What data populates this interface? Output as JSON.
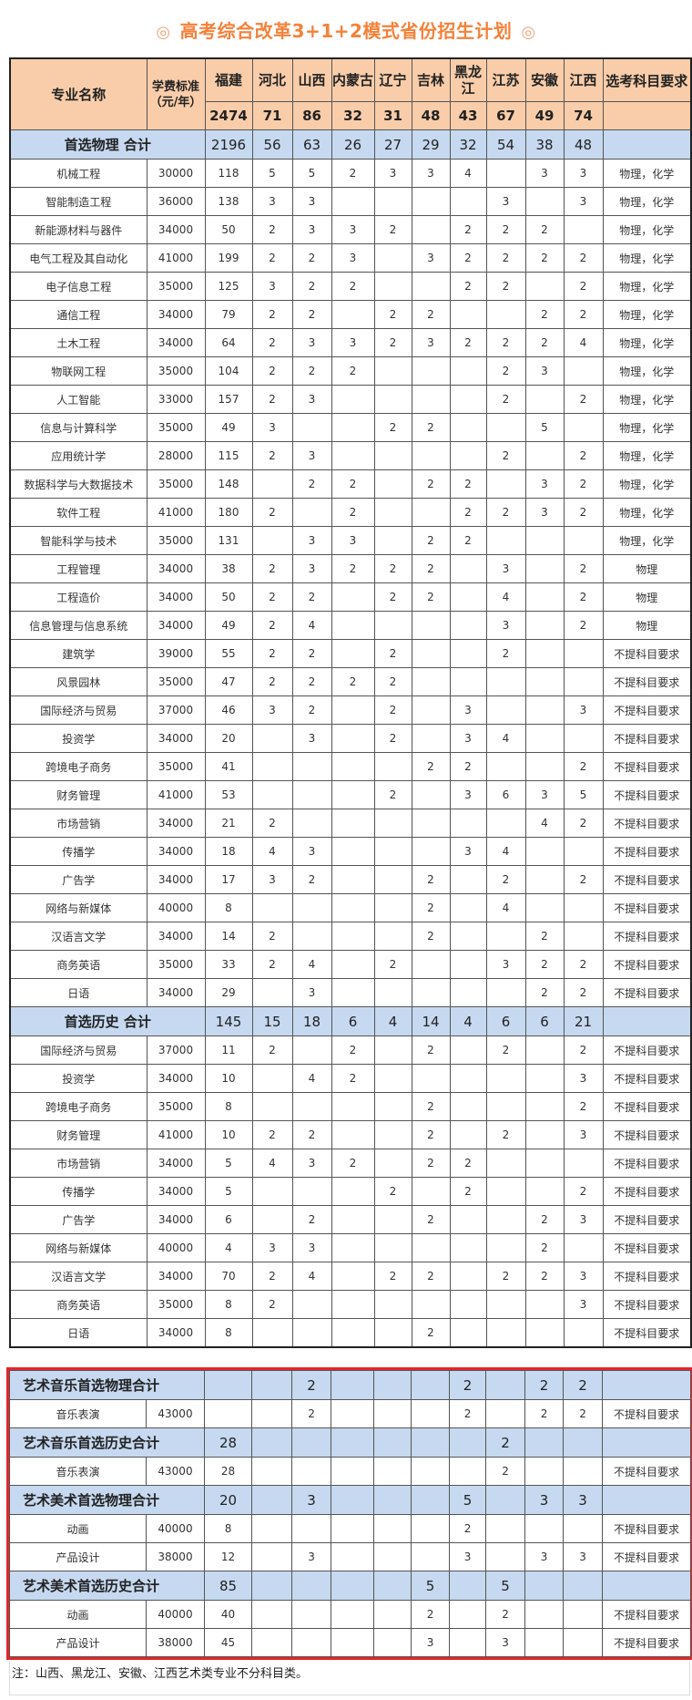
{
  "title": "高考综合改革3+1+2模式省份招生计划",
  "title_decoration_icon": "◎",
  "colors": {
    "title": "#f5813a",
    "header_bg": "#f9cda9",
    "total_bg": "#c6d9f0",
    "highlight_border": "#e3262a"
  },
  "header": {
    "major": "专业名称",
    "fee": "学费标准（元/年）",
    "requirement": "选考科目要求",
    "provinces": [
      "福建",
      "河北",
      "山西",
      "内蒙古",
      "辽宁",
      "吉林",
      "黑龙江",
      "江苏",
      "安徽",
      "江西"
    ],
    "totals": [
      "2474",
      "71",
      "86",
      "32",
      "31",
      "48",
      "43",
      "67",
      "49",
      "74"
    ]
  },
  "sections": [
    {
      "label": "首选物理  合计",
      "values": [
        "2196",
        "56",
        "63",
        "26",
        "27",
        "29",
        "32",
        "54",
        "38",
        "48"
      ],
      "rows": [
        {
          "name": "机械工程",
          "fee": "30000",
          "counts": [
            "118",
            "5",
            "5",
            "2",
            "3",
            "3",
            "4",
            "",
            "3",
            "3"
          ],
          "req": "物理，化学"
        },
        {
          "name": "智能制造工程",
          "fee": "36000",
          "counts": [
            "138",
            "3",
            "3",
            "",
            "",
            "",
            "",
            "3",
            "",
            "3"
          ],
          "req": "物理，化学"
        },
        {
          "name": "新能源材料与器件",
          "fee": "34000",
          "counts": [
            "50",
            "2",
            "3",
            "3",
            "2",
            "",
            "2",
            "2",
            "2",
            ""
          ],
          "req": "物理，化学"
        },
        {
          "name": "电气工程及其自动化",
          "fee": "41000",
          "counts": [
            "199",
            "2",
            "2",
            "3",
            "",
            "3",
            "2",
            "2",
            "2",
            "2"
          ],
          "req": "物理，化学"
        },
        {
          "name": "电子信息工程",
          "fee": "35000",
          "counts": [
            "125",
            "3",
            "2",
            "2",
            "",
            "",
            "2",
            "2",
            "",
            "2"
          ],
          "req": "物理，化学"
        },
        {
          "name": "通信工程",
          "fee": "34000",
          "counts": [
            "79",
            "2",
            "2",
            "",
            "2",
            "2",
            "",
            "",
            "2",
            "2"
          ],
          "req": "物理，化学"
        },
        {
          "name": "土木工程",
          "fee": "34000",
          "counts": [
            "64",
            "2",
            "3",
            "3",
            "2",
            "3",
            "2",
            "2",
            "2",
            "4"
          ],
          "req": "物理，化学"
        },
        {
          "name": "物联网工程",
          "fee": "35000",
          "counts": [
            "104",
            "2",
            "2",
            "2",
            "",
            "",
            "",
            "2",
            "3",
            ""
          ],
          "req": "物理，化学"
        },
        {
          "name": "人工智能",
          "fee": "33000",
          "counts": [
            "157",
            "2",
            "3",
            "",
            "",
            "",
            "",
            "2",
            "",
            "2"
          ],
          "req": "物理，化学"
        },
        {
          "name": "信息与计算科学",
          "fee": "35000",
          "counts": [
            "49",
            "3",
            "",
            "",
            "2",
            "2",
            "",
            "",
            "5",
            ""
          ],
          "req": "物理，化学"
        },
        {
          "name": "应用统计学",
          "fee": "28000",
          "counts": [
            "115",
            "2",
            "3",
            "",
            "",
            "",
            "",
            "2",
            "",
            "2"
          ],
          "req": "物理，化学"
        },
        {
          "name": "数据科学与大数据技术",
          "fee": "35000",
          "counts": [
            "148",
            "",
            "2",
            "2",
            "",
            "2",
            "2",
            "",
            "3",
            "2"
          ],
          "req": "物理，化学"
        },
        {
          "name": "软件工程",
          "fee": "41000",
          "counts": [
            "180",
            "2",
            "",
            "2",
            "",
            "",
            "2",
            "2",
            "3",
            "2"
          ],
          "req": "物理，化学"
        },
        {
          "name": "智能科学与技术",
          "fee": "35000",
          "counts": [
            "131",
            "",
            "3",
            "3",
            "",
            "2",
            "2",
            "",
            "",
            ""
          ],
          "req": "物理，化学"
        },
        {
          "name": "工程管理",
          "fee": "34000",
          "counts": [
            "38",
            "2",
            "3",
            "2",
            "2",
            "2",
            "",
            "3",
            "",
            "2"
          ],
          "req": "物理"
        },
        {
          "name": "工程造价",
          "fee": "34000",
          "counts": [
            "50",
            "2",
            "2",
            "",
            "2",
            "2",
            "",
            "4",
            "",
            "2"
          ],
          "req": "物理"
        },
        {
          "name": "信息管理与信息系统",
          "fee": "34000",
          "counts": [
            "49",
            "2",
            "4",
            "",
            "",
            "",
            "",
            "3",
            "",
            "2"
          ],
          "req": "物理"
        },
        {
          "name": "建筑学",
          "fee": "39000",
          "counts": [
            "55",
            "2",
            "2",
            "",
            "2",
            "",
            "",
            "2",
            "",
            ""
          ],
          "req": "不提科目要求"
        },
        {
          "name": "风景园林",
          "fee": "35000",
          "counts": [
            "47",
            "2",
            "2",
            "2",
            "2",
            "",
            "",
            "",
            "",
            ""
          ],
          "req": "不提科目要求"
        },
        {
          "name": "国际经济与贸易",
          "fee": "37000",
          "counts": [
            "46",
            "3",
            "2",
            "",
            "2",
            "",
            "3",
            "",
            "",
            "3"
          ],
          "req": "不提科目要求"
        },
        {
          "name": "投资学",
          "fee": "34000",
          "counts": [
            "20",
            "",
            "3",
            "",
            "2",
            "",
            "3",
            "4",
            "",
            ""
          ],
          "req": "不提科目要求"
        },
        {
          "name": "跨境电子商务",
          "fee": "35000",
          "counts": [
            "41",
            "",
            "",
            "",
            "",
            "2",
            "2",
            "",
            "",
            "2"
          ],
          "req": "不提科目要求"
        },
        {
          "name": "财务管理",
          "fee": "41000",
          "counts": [
            "53",
            "",
            "",
            "",
            "2",
            "",
            "3",
            "6",
            "3",
            "5"
          ],
          "req": "不提科目要求"
        },
        {
          "name": "市场营销",
          "fee": "34000",
          "counts": [
            "21",
            "2",
            "",
            "",
            "",
            "",
            "",
            "",
            "4",
            "2"
          ],
          "req": "不提科目要求"
        },
        {
          "name": "传播学",
          "fee": "34000",
          "counts": [
            "18",
            "4",
            "3",
            "",
            "",
            "",
            "3",
            "4",
            "",
            ""
          ],
          "req": "不提科目要求"
        },
        {
          "name": "广告学",
          "fee": "34000",
          "counts": [
            "17",
            "3",
            "2",
            "",
            "",
            "2",
            "",
            "2",
            "",
            "2"
          ],
          "req": "不提科目要求"
        },
        {
          "name": "网络与新媒体",
          "fee": "40000",
          "counts": [
            "8",
            "",
            "",
            "",
            "",
            "2",
            "",
            "4",
            "",
            ""
          ],
          "req": "不提科目要求"
        },
        {
          "name": "汉语言文学",
          "fee": "34000",
          "counts": [
            "14",
            "2",
            "",
            "",
            "",
            "2",
            "",
            "",
            "2",
            ""
          ],
          "req": "不提科目要求"
        },
        {
          "name": "商务英语",
          "fee": "35000",
          "counts": [
            "33",
            "2",
            "4",
            "",
            "2",
            "",
            "",
            "3",
            "2",
            "2"
          ],
          "req": "不提科目要求"
        },
        {
          "name": "日语",
          "fee": "34000",
          "counts": [
            "29",
            "",
            "3",
            "",
            "",
            "",
            "",
            "",
            "2",
            "2"
          ],
          "req": "不提科目要求"
        }
      ]
    },
    {
      "label": "首选历史  合计",
      "values": [
        "145",
        "15",
        "18",
        "6",
        "4",
        "14",
        "4",
        "6",
        "6",
        "21"
      ],
      "rows": [
        {
          "name": "国际经济与贸易",
          "fee": "37000",
          "counts": [
            "11",
            "2",
            "",
            "2",
            "",
            "2",
            "",
            "2",
            "",
            "2"
          ],
          "req": "不提科目要求"
        },
        {
          "name": "投资学",
          "fee": "34000",
          "counts": [
            "10",
            "",
            "4",
            "2",
            "",
            "",
            "",
            "",
            "",
            "3"
          ],
          "req": "不提科目要求"
        },
        {
          "name": "跨境电子商务",
          "fee": "35000",
          "counts": [
            "8",
            "",
            "",
            "",
            "",
            "2",
            "",
            "",
            "",
            "2"
          ],
          "req": "不提科目要求"
        },
        {
          "name": "财务管理",
          "fee": "41000",
          "counts": [
            "10",
            "2",
            "2",
            "",
            "",
            "2",
            "",
            "2",
            "",
            "3"
          ],
          "req": "不提科目要求"
        },
        {
          "name": "市场营销",
          "fee": "34000",
          "counts": [
            "5",
            "4",
            "3",
            "2",
            "",
            "2",
            "2",
            "",
            "",
            ""
          ],
          "req": "不提科目要求"
        },
        {
          "name": "传播学",
          "fee": "34000",
          "counts": [
            "5",
            "",
            "",
            "",
            "2",
            "",
            "2",
            "",
            "",
            "2"
          ],
          "req": "不提科目要求"
        },
        {
          "name": "广告学",
          "fee": "34000",
          "counts": [
            "6",
            "",
            "2",
            "",
            "",
            "2",
            "",
            "",
            "2",
            "3"
          ],
          "req": "不提科目要求"
        },
        {
          "name": "网络与新媒体",
          "fee": "40000",
          "counts": [
            "4",
            "3",
            "3",
            "",
            "",
            "",
            "",
            "",
            "2",
            ""
          ],
          "req": "不提科目要求"
        },
        {
          "name": "汉语言文学",
          "fee": "34000",
          "counts": [
            "70",
            "2",
            "4",
            "",
            "2",
            "2",
            "",
            "2",
            "2",
            "3"
          ],
          "req": "不提科目要求"
        },
        {
          "name": "商务英语",
          "fee": "35000",
          "counts": [
            "8",
            "2",
            "",
            "",
            "",
            "",
            "",
            "",
            "",
            "3"
          ],
          "req": "不提科目要求"
        },
        {
          "name": "日语",
          "fee": "34000",
          "counts": [
            "8",
            "",
            "",
            "",
            "",
            "2",
            "",
            "",
            "",
            ""
          ],
          "req": "不提科目要求"
        }
      ]
    }
  ],
  "art_sections": [
    {
      "label": "艺术音乐首选物理合计",
      "values": [
        "",
        "",
        "2",
        "",
        "",
        "",
        "2",
        "",
        "2",
        "2"
      ],
      "rows": [
        {
          "name": "音乐表演",
          "fee": "43000",
          "counts": [
            "",
            "",
            "2",
            "",
            "",
            "",
            "2",
            "",
            "2",
            "2"
          ],
          "req": "不提科目要求"
        }
      ]
    },
    {
      "label": "艺术音乐首选历史合计",
      "values": [
        "28",
        "",
        "",
        "",
        "",
        "",
        "",
        "2",
        "",
        ""
      ],
      "rows": [
        {
          "name": "音乐表演",
          "fee": "43000",
          "counts": [
            "28",
            "",
            "",
            "",
            "",
            "",
            "",
            "2",
            "",
            ""
          ],
          "req": "不提科目要求"
        }
      ]
    },
    {
      "label": "艺术美术首选物理合计",
      "values": [
        "20",
        "",
        "3",
        "",
        "",
        "",
        "5",
        "",
        "3",
        "3"
      ],
      "rows": [
        {
          "name": "动画",
          "fee": "40000",
          "counts": [
            "8",
            "",
            "",
            "",
            "",
            "",
            "2",
            "",
            "",
            ""
          ],
          "req": "不提科目要求"
        },
        {
          "name": "产品设计",
          "fee": "38000",
          "counts": [
            "12",
            "",
            "3",
            "",
            "",
            "",
            "3",
            "",
            "3",
            "3"
          ],
          "req": "不提科目要求"
        }
      ]
    },
    {
      "label": "艺术美术首选历史合计",
      "values": [
        "85",
        "",
        "",
        "",
        "",
        "5",
        "",
        "5",
        "",
        ""
      ],
      "rows": [
        {
          "name": "动画",
          "fee": "40000",
          "counts": [
            "40",
            "",
            "",
            "",
            "",
            "2",
            "",
            "2",
            "",
            ""
          ],
          "req": "不提科目要求"
        },
        {
          "name": "产品设计",
          "fee": "38000",
          "counts": [
            "45",
            "",
            "",
            "",
            "",
            "3",
            "",
            "3",
            "",
            ""
          ],
          "req": "不提科目要求"
        }
      ]
    }
  ],
  "note": "注：山西、黑龙江、安徽、江西艺术类专业不分科目类。"
}
